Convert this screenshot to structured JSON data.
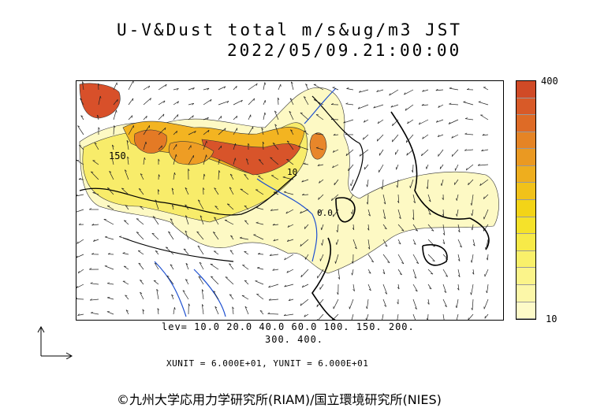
{
  "title": {
    "line1": "U-V&Dust total m/s&ug/m3 JST",
    "line2": "2022/05/09.21:00:00"
  },
  "colorbar": {
    "max_label": "400",
    "min_label": "10",
    "colors": [
      "#fdfac8",
      "#fcf7a8",
      "#fbf48a",
      "#f9f06a",
      "#f7ea48",
      "#f5e22a",
      "#f3d417",
      "#f1c21a",
      "#eeae1e",
      "#ea9922",
      "#e58425",
      "#de6b26",
      "#d85a28",
      "#d04a26"
    ]
  },
  "map": {
    "contour_labels": [
      "150",
      "10",
      "0.0"
    ],
    "legend_levels_line1": "lev= 10.0 20.0 40.0 60.0 100. 150. 200.",
    "legend_levels_line2": "300. 400.",
    "units_line": "XUNIT = 6.000E+01, YUNIT = 6.000E+01"
  },
  "footer": {
    "copyright": "©九州大学応用力学研究所(RIAM)/国立環境研究所(NIES)"
  }
}
